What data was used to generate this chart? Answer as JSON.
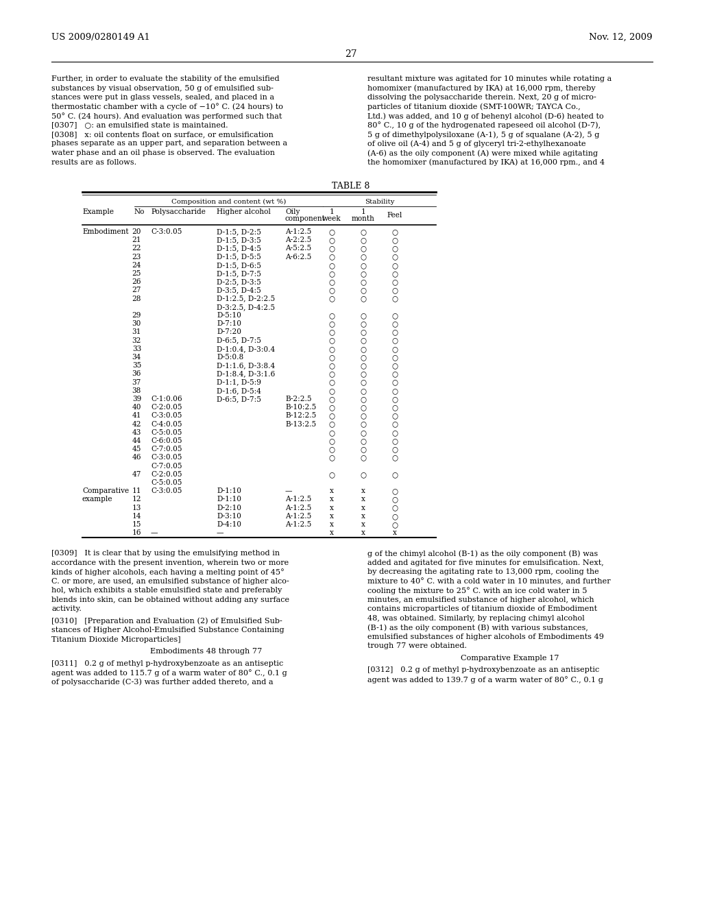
{
  "page_num": "27",
  "patent_num": "US 2009/0280149 A1",
  "patent_date": "Nov. 12, 2009",
  "table_title": "TABLE 8",
  "table_rows": [
    [
      "Embodiment",
      "20",
      "C-3:0.05",
      "D-1:5, D-2:5",
      "A-1:2.5",
      "○",
      "○",
      "○"
    ],
    [
      "",
      "21",
      "",
      "D-1:5, D-3:5",
      "A-2:2.5",
      "○",
      "○",
      "○"
    ],
    [
      "",
      "22",
      "",
      "D-1:5, D-4:5",
      "A-5:2.5",
      "○",
      "○",
      "○"
    ],
    [
      "",
      "23",
      "",
      "D-1:5, D-5:5",
      "A-6:2.5",
      "○",
      "○",
      "○"
    ],
    [
      "",
      "24",
      "",
      "D-1:5, D-6:5",
      "",
      "○",
      "○",
      "○"
    ],
    [
      "",
      "25",
      "",
      "D-1:5, D-7:5",
      "",
      "○",
      "○",
      "○"
    ],
    [
      "",
      "26",
      "",
      "D-2:5, D-3:5",
      "",
      "○",
      "○",
      "○"
    ],
    [
      "",
      "27",
      "",
      "D-3:5, D-4:5",
      "",
      "○",
      "○",
      "○"
    ],
    [
      "",
      "28",
      "",
      "D-1:2.5, D-2:2.5",
      "",
      "○",
      "○",
      "○"
    ],
    [
      "",
      "",
      "",
      "D-3:2.5, D-4:2.5",
      "",
      "",
      "",
      ""
    ],
    [
      "",
      "29",
      "",
      "D-5:10",
      "",
      "○",
      "○",
      "○"
    ],
    [
      "",
      "30",
      "",
      "D-7:10",
      "",
      "○",
      "○",
      "○"
    ],
    [
      "",
      "31",
      "",
      "D-7:20",
      "",
      "○",
      "○",
      "○"
    ],
    [
      "",
      "32",
      "",
      "D-6:5, D-7:5",
      "",
      "○",
      "○",
      "○"
    ],
    [
      "",
      "33",
      "",
      "D-1:0.4, D-3:0.4",
      "",
      "○",
      "○",
      "○"
    ],
    [
      "",
      "34",
      "",
      "D-5:0.8",
      "",
      "○",
      "○",
      "○"
    ],
    [
      "",
      "35",
      "",
      "D-1:1.6, D-3:8.4",
      "",
      "○",
      "○",
      "○"
    ],
    [
      "",
      "36",
      "",
      "D-1:8.4, D-3:1.6",
      "",
      "○",
      "○",
      "○"
    ],
    [
      "",
      "37",
      "",
      "D-1:1, D-5:9",
      "",
      "○",
      "○",
      "○"
    ],
    [
      "",
      "38",
      "",
      "D-1:6, D-5:4",
      "",
      "○",
      "○",
      "○"
    ],
    [
      "",
      "39",
      "C-1:0.06",
      "D-6:5, D-7:5",
      "B-2:2.5",
      "○",
      "○",
      "○"
    ],
    [
      "",
      "40",
      "C-2:0.05",
      "",
      "B-10:2.5",
      "○",
      "○",
      "○"
    ],
    [
      "",
      "41",
      "C-3:0.05",
      "",
      "B-12:2.5",
      "○",
      "○",
      "○"
    ],
    [
      "",
      "42",
      "C-4:0.05",
      "",
      "B-13:2.5",
      "○",
      "○",
      "○"
    ],
    [
      "",
      "43",
      "C-5:0.05",
      "",
      "",
      "○",
      "○",
      "○"
    ],
    [
      "",
      "44",
      "C-6:0.05",
      "",
      "",
      "○",
      "○",
      "○"
    ],
    [
      "",
      "45",
      "C-7:0.05",
      "",
      "",
      "○",
      "○",
      "○"
    ],
    [
      "",
      "46",
      "C-3:0.05",
      "",
      "",
      "○",
      "○",
      "○"
    ],
    [
      "",
      "",
      "C-7:0.05",
      "",
      "",
      "",
      "",
      ""
    ],
    [
      "",
      "47",
      "C-2:0.05",
      "",
      "",
      "○",
      "○",
      "○"
    ],
    [
      "",
      "",
      "C-5:0.05",
      "",
      "",
      "",
      "",
      ""
    ],
    [
      "Comparative",
      "11",
      "C-3:0.05",
      "D-1:10",
      "—",
      "x",
      "x",
      "○"
    ],
    [
      "example",
      "12",
      "",
      "D-1:10",
      "A-1:2.5",
      "x",
      "x",
      "○"
    ],
    [
      "",
      "13",
      "",
      "D-2:10",
      "A-1:2.5",
      "x",
      "x",
      "○"
    ],
    [
      "",
      "14",
      "",
      "D-3:10",
      "A-1:2.5",
      "x",
      "x",
      "○"
    ],
    [
      "",
      "15",
      "",
      "D-4:10",
      "A-1:2.5",
      "x",
      "x",
      "○"
    ],
    [
      "",
      "16",
      "—",
      "—",
      "",
      "x",
      "x",
      "x"
    ]
  ]
}
